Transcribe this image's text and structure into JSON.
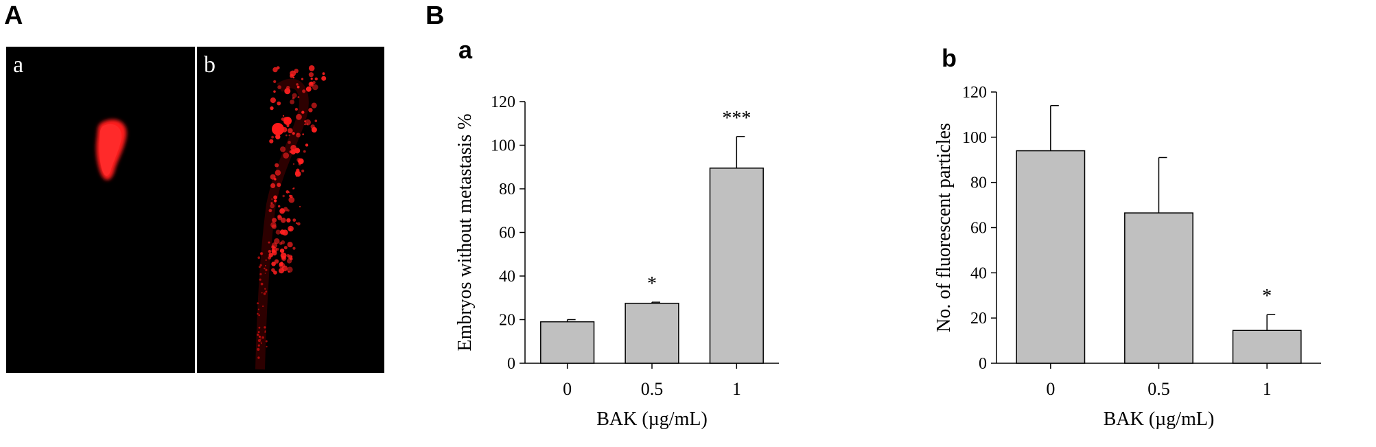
{
  "panels": {
    "A": "A",
    "B": "B"
  },
  "micrographs": [
    {
      "label": "a"
    },
    {
      "label": "b"
    }
  ],
  "chart_data": [
    {
      "type": "bar",
      "panel_label": "a",
      "categories": [
        "0",
        "0.5",
        "1"
      ],
      "values": [
        19,
        27.5,
        89.5
      ],
      "errors": [
        1,
        0.5,
        14.5
      ],
      "significance": [
        "",
        "*",
        "***"
      ],
      "xlabel": "BAK (µg/mL)",
      "ylabel": "Embryos without metastasis %",
      "ylim": [
        0,
        120
      ],
      "yticks": [
        0,
        20,
        40,
        60,
        80,
        100,
        120
      ],
      "bar_color": "#c0c0c0"
    },
    {
      "type": "bar",
      "panel_label": "b",
      "categories": [
        "0",
        "0.5",
        "1"
      ],
      "values": [
        94,
        66.5,
        14.5
      ],
      "errors": [
        20,
        24.5,
        7
      ],
      "significance": [
        "",
        "",
        "*"
      ],
      "xlabel": "BAK (µg/mL)",
      "ylabel": "No. of fluorescent particles",
      "ylim": [
        0,
        120
      ],
      "yticks": [
        0,
        20,
        40,
        60,
        80,
        100,
        120
      ],
      "bar_color": "#c0c0c0"
    }
  ]
}
